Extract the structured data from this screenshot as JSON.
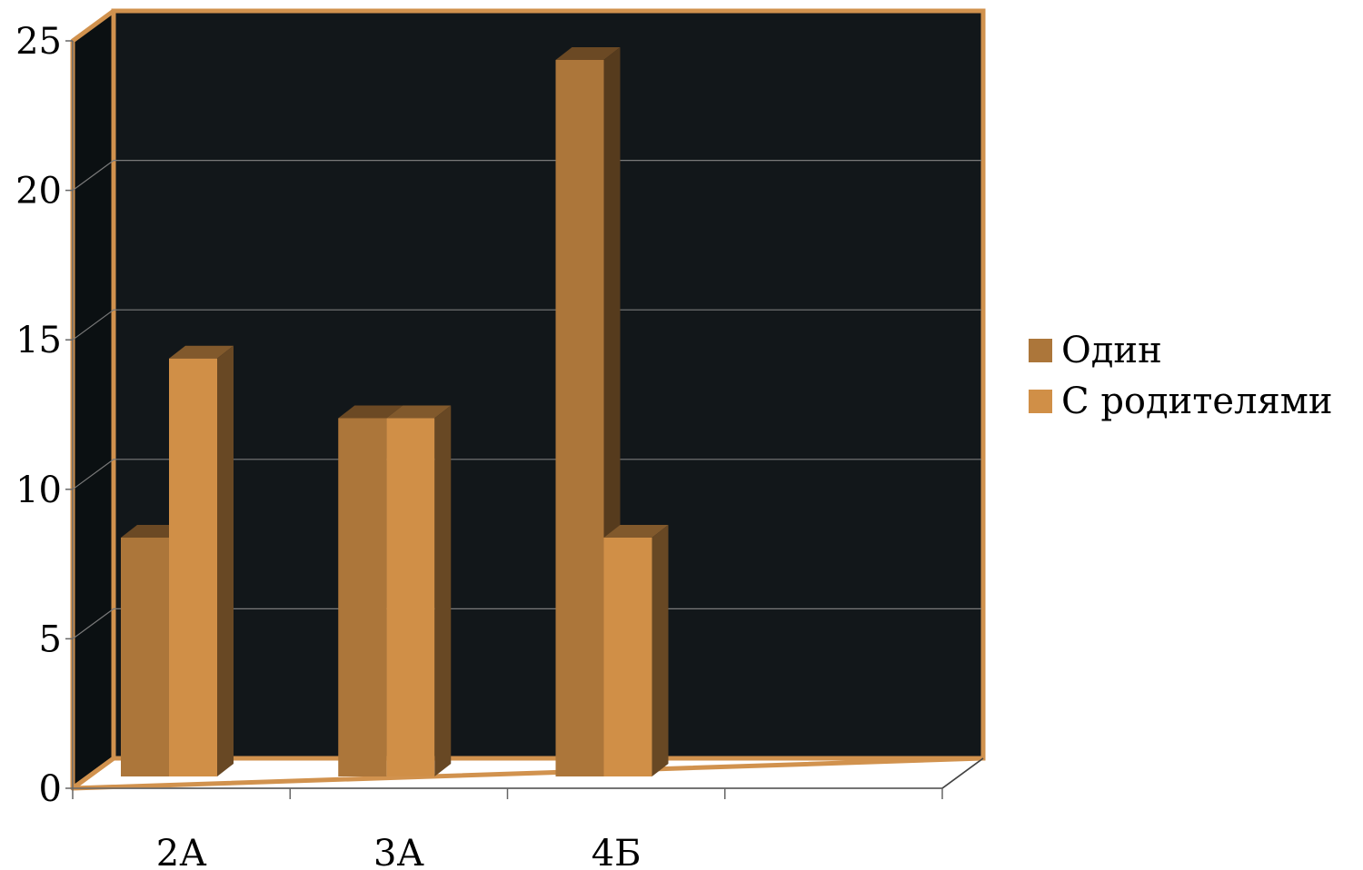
{
  "chart_data": {
    "type": "bar",
    "categories": [
      "2А",
      "3А",
      "4Б"
    ],
    "series": [
      {
        "name": "Один",
        "values": [
          8,
          12,
          24
        ],
        "color": "#AC763A"
      },
      {
        "name": "С родителями",
        "values": [
          14,
          12,
          8
        ],
        "color": "#D08F47"
      }
    ],
    "ylim": [
      0,
      25
    ],
    "yticks": [
      "0",
      "5",
      "10",
      "15",
      "20",
      "25"
    ],
    "title": "",
    "xlabel": "",
    "ylabel": "",
    "grid": true,
    "legend": "right",
    "colors": {
      "wall": "#12171A",
      "frame": "#D1924E",
      "gridline": "#7A7A7A"
    }
  }
}
